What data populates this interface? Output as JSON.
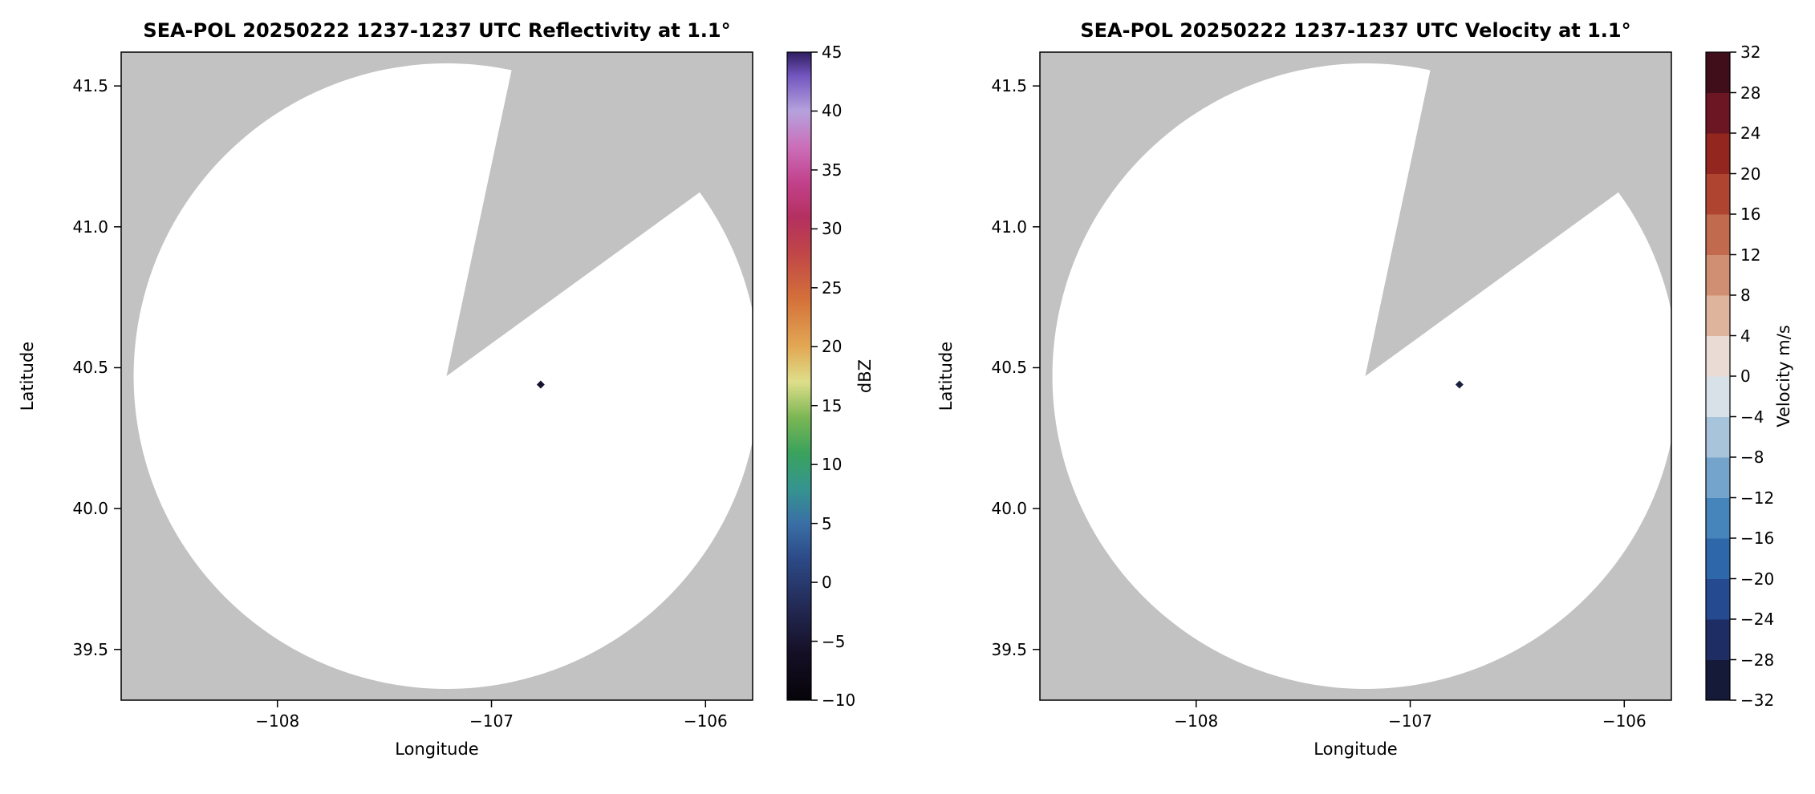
{
  "figure": {
    "background": "#ffffff",
    "nodata_color": "#c2c2c2",
    "scan_fill_color": "#ffffff",
    "axis_color": "#000000"
  },
  "chart_data": [
    {
      "type": "heatmap",
      "variable": "reflectivity",
      "title": "SEA-POL 20250222 1237-1237 UTC Reflectivity at 1.1°",
      "xlabel": "Longitude",
      "ylabel": "Latitude",
      "xlim": [
        -108.73,
        -105.78
      ],
      "ylim": [
        39.32,
        41.62
      ],
      "xticks": [
        {
          "v": -108,
          "label": "−108"
        },
        {
          "v": -107,
          "label": "−107"
        },
        {
          "v": -106,
          "label": "−106"
        }
      ],
      "yticks": [
        {
          "v": 39.5,
          "label": "39.5"
        },
        {
          "v": 40.0,
          "label": "40.0"
        },
        {
          "v": 40.5,
          "label": "40.5"
        },
        {
          "v": 41.0,
          "label": "41.0"
        },
        {
          "v": 41.5,
          "label": "41.5"
        }
      ],
      "radar": {
        "center_lon": -107.21,
        "center_lat": 40.47,
        "range_radius_deg_lat": 1.11,
        "blocked_sector_azimuth_deg": [
          12,
          54
        ],
        "scan_note": "white = scanned area with no echoes above minimum; gray = no data / outside range; gray wedge = blocked sector"
      },
      "echoes": [
        {
          "lon": -106.77,
          "lat": 40.44,
          "value_dbz": -5,
          "marker_color": "#15132e"
        }
      ],
      "colorbar": {
        "label": "dBZ",
        "vmin": -10,
        "vmax": 45,
        "ticks": [
          {
            "v": -10,
            "label": "−10"
          },
          {
            "v": -5,
            "label": "−5"
          },
          {
            "v": 0,
            "label": "0"
          },
          {
            "v": 5,
            "label": "5"
          },
          {
            "v": 10,
            "label": "10"
          },
          {
            "v": 15,
            "label": "15"
          },
          {
            "v": 20,
            "label": "20"
          },
          {
            "v": 25,
            "label": "25"
          },
          {
            "v": 30,
            "label": "30"
          },
          {
            "v": 35,
            "label": "35"
          },
          {
            "v": 40,
            "label": "40"
          },
          {
            "v": 45,
            "label": "45"
          }
        ],
        "gradient_stops": [
          {
            "v": -10,
            "color": "#060409"
          },
          {
            "v": -6,
            "color": "#150f26"
          },
          {
            "v": -2,
            "color": "#232a55"
          },
          {
            "v": 2,
            "color": "#2c4a87"
          },
          {
            "v": 5,
            "color": "#3a6fa6"
          },
          {
            "v": 8,
            "color": "#35958f"
          },
          {
            "v": 11,
            "color": "#3aa25c"
          },
          {
            "v": 14,
            "color": "#7cb654"
          },
          {
            "v": 17,
            "color": "#dede8a"
          },
          {
            "v": 20,
            "color": "#e2a854"
          },
          {
            "v": 24,
            "color": "#d4713a"
          },
          {
            "v": 28,
            "color": "#c04548"
          },
          {
            "v": 31,
            "color": "#b43060"
          },
          {
            "v": 34,
            "color": "#c2428c"
          },
          {
            "v": 37,
            "color": "#cb6fba"
          },
          {
            "v": 40,
            "color": "#b5a2dd"
          },
          {
            "v": 43,
            "color": "#7355bf"
          },
          {
            "v": 45,
            "color": "#2f1e5f"
          }
        ]
      }
    },
    {
      "type": "heatmap",
      "variable": "velocity",
      "title": "SEA-POL 20250222 1237-1237 UTC Velocity at 1.1°",
      "xlabel": "Longitude",
      "ylabel": "Latitude",
      "xlim": [
        -108.73,
        -105.78
      ],
      "ylim": [
        39.32,
        41.62
      ],
      "xticks": [
        {
          "v": -108,
          "label": "−108"
        },
        {
          "v": -107,
          "label": "−107"
        },
        {
          "v": -106,
          "label": "−106"
        }
      ],
      "yticks": [
        {
          "v": 39.5,
          "label": "39.5"
        },
        {
          "v": 40.0,
          "label": "40.0"
        },
        {
          "v": 40.5,
          "label": "40.5"
        },
        {
          "v": 41.0,
          "label": "41.0"
        },
        {
          "v": 41.5,
          "label": "41.5"
        }
      ],
      "radar": {
        "center_lon": -107.21,
        "center_lat": 40.47,
        "range_radius_deg_lat": 1.11,
        "blocked_sector_azimuth_deg": [
          12,
          54
        ],
        "scan_note": "white = scanned area with no velocity data; gray = no data / outside range; gray wedge = blocked sector"
      },
      "echoes": [
        {
          "lon": -106.77,
          "lat": 40.44,
          "value_m_s": -28,
          "marker_color": "#1b2040"
        }
      ],
      "colorbar": {
        "label": "Velocity m/s",
        "vmin": -32,
        "vmax": 32,
        "ticks": [
          {
            "v": 32,
            "label": "32"
          },
          {
            "v": 28,
            "label": "28"
          },
          {
            "v": 24,
            "label": "24"
          },
          {
            "v": 20,
            "label": "20"
          },
          {
            "v": 16,
            "label": "16"
          },
          {
            "v": 12,
            "label": "12"
          },
          {
            "v": 8,
            "label": "8"
          },
          {
            "v": 4,
            "label": "4"
          },
          {
            "v": 0,
            "label": "0"
          },
          {
            "v": -4,
            "label": "−4"
          },
          {
            "v": -8,
            "label": "−8"
          },
          {
            "v": -12,
            "label": "−12"
          },
          {
            "v": -16,
            "label": "−16"
          },
          {
            "v": -20,
            "label": "−20"
          },
          {
            "v": -24,
            "label": "−24"
          },
          {
            "v": -28,
            "label": "−28"
          },
          {
            "v": -32,
            "label": "−32"
          }
        ],
        "segments": [
          {
            "from": -32,
            "to": -28,
            "color": "#161a39"
          },
          {
            "from": -28,
            "to": -24,
            "color": "#1e2d63"
          },
          {
            "from": -24,
            "to": -20,
            "color": "#264a90"
          },
          {
            "from": -20,
            "to": -16,
            "color": "#2f67ab"
          },
          {
            "from": -16,
            "to": -12,
            "color": "#4684bc"
          },
          {
            "from": -12,
            "to": -8,
            "color": "#74a4cc"
          },
          {
            "from": -8,
            "to": -4,
            "color": "#a7c4da"
          },
          {
            "from": -4,
            "to": 0,
            "color": "#d8e1e8"
          },
          {
            "from": 0,
            "to": 4,
            "color": "#eadcd4"
          },
          {
            "from": 4,
            "to": 8,
            "color": "#dfb49c"
          },
          {
            "from": 8,
            "to": 12,
            "color": "#d08f72"
          },
          {
            "from": 12,
            "to": 16,
            "color": "#c16a4d"
          },
          {
            "from": 16,
            "to": 20,
            "color": "#af4531"
          },
          {
            "from": 20,
            "to": 24,
            "color": "#93261f"
          },
          {
            "from": 24,
            "to": 28,
            "color": "#6d1623"
          },
          {
            "from": 28,
            "to": 32,
            "color": "#400d1b"
          }
        ]
      }
    }
  ]
}
